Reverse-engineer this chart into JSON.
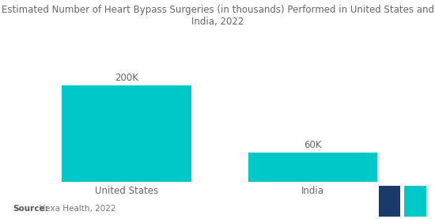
{
  "categories": [
    "United States",
    "India"
  ],
  "values": [
    200,
    60
  ],
  "bar_labels": [
    "200K",
    "60K"
  ],
  "bar_color": "#00C8C8",
  "title_line1": "Estimated Number of Heart Bypass Surgeries (in thousands) Performed in United States and",
  "title_line2": "India, 2022",
  "title_fontsize": 8.5,
  "title_color": "#666666",
  "label_fontsize": 8.5,
  "tick_fontsize": 8.5,
  "source_bold": "Source:",
  "source_normal": "  Hexa Health, 2022",
  "source_fontsize": 7.5,
  "ylim": [
    0,
    250
  ],
  "background_color": "#ffffff",
  "bar_width": 0.32,
  "x_positions": [
    0.27,
    0.73
  ]
}
